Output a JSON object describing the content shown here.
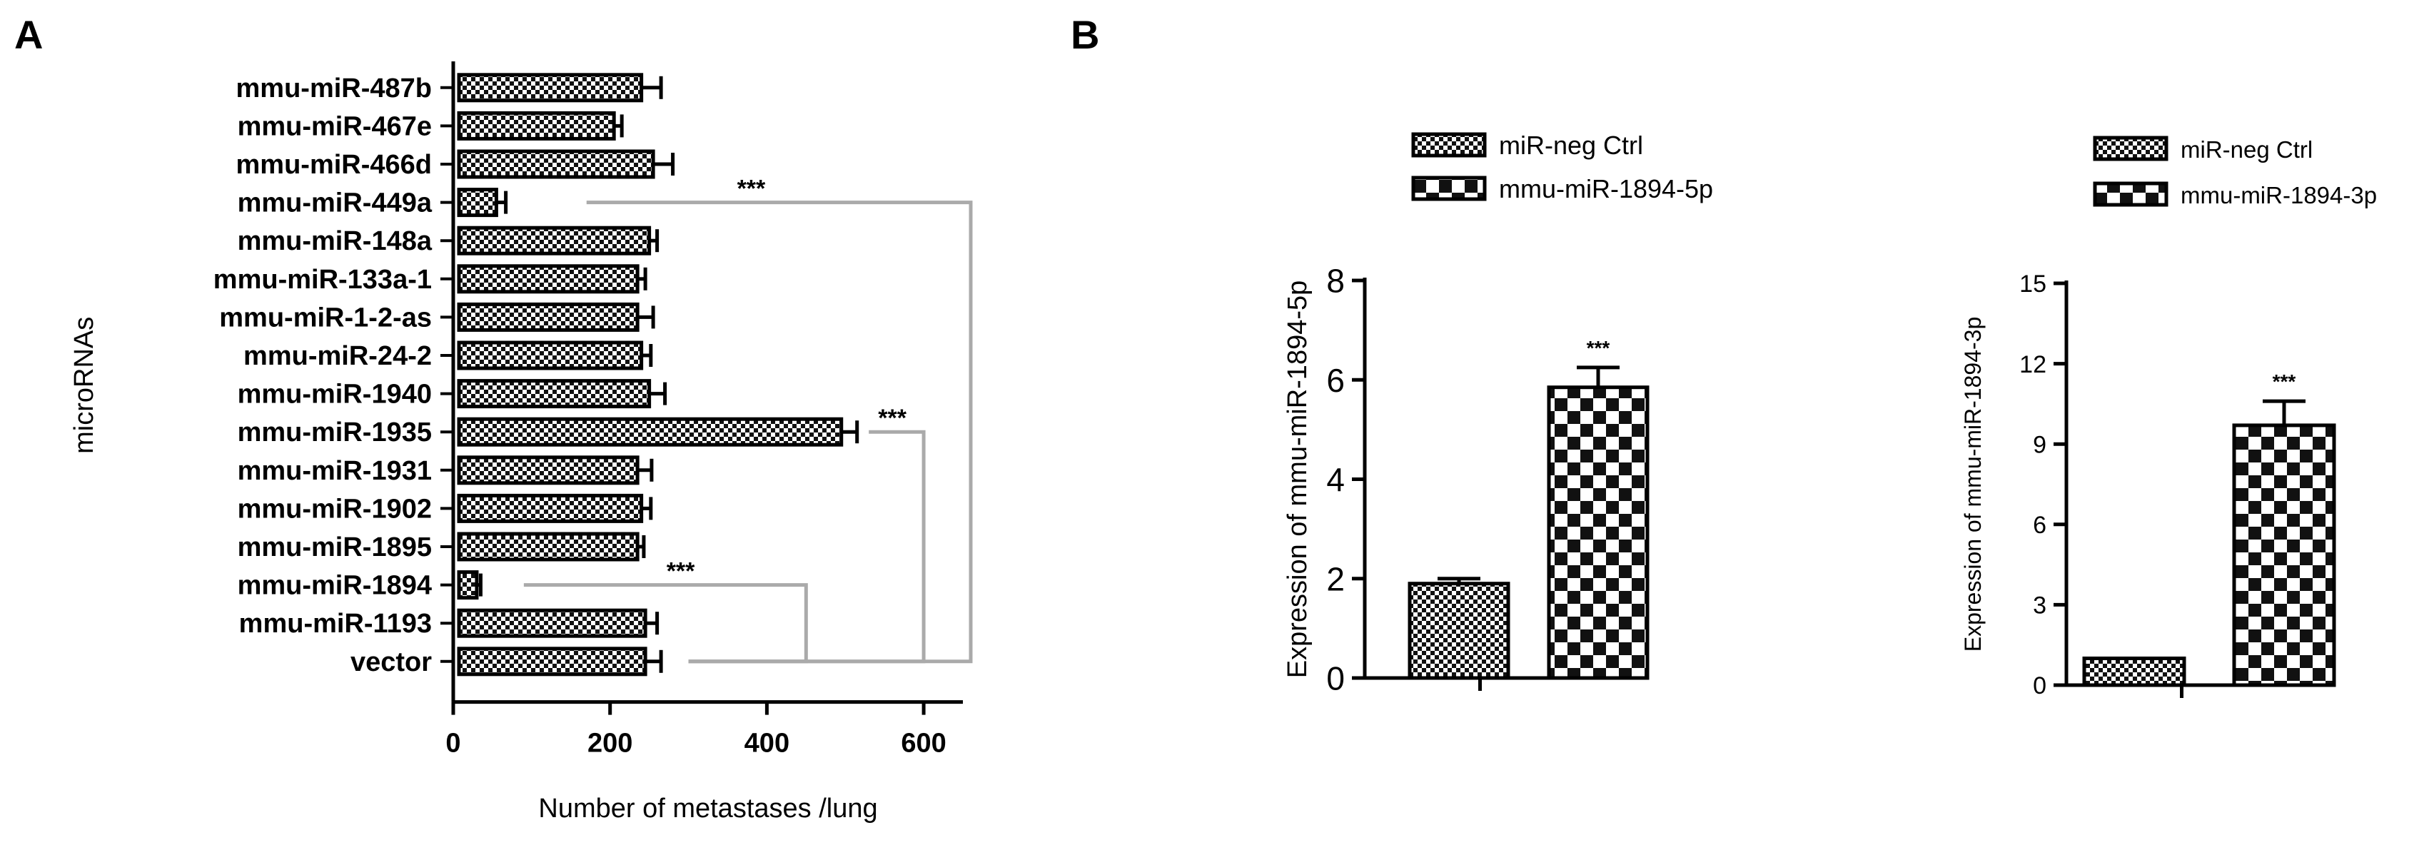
{
  "panels": {
    "a": "A",
    "b": "B"
  },
  "chart_data": [
    {
      "type": "bar",
      "orientation": "horizontal",
      "ylabel": "microRNAs",
      "xlabel": "Number of metastases /lung",
      "xlim": [
        0,
        650
      ],
      "xticks": [
        0,
        200,
        400,
        600
      ],
      "categories": [
        "mmu-miR-487b",
        "mmu-miR-467e",
        "mmu-miR-466d",
        "mmu-miR-449a",
        "mmu-miR-148a",
        "mmu-miR-133a-1",
        "mmu-miR-1-2-as",
        "mmu-miR-24-2",
        "mmu-miR-1940",
        "mmu-miR-1935",
        "mmu-miR-1931",
        "mmu-miR-1902",
        "mmu-miR-1895",
        "mmu-miR-1894",
        "mmu-miR-1193",
        "vector"
      ],
      "values": [
        240,
        205,
        255,
        55,
        250,
        235,
        235,
        240,
        250,
        495,
        235,
        240,
        235,
        30,
        245,
        245
      ],
      "errors": [
        25,
        10,
        25,
        12,
        10,
        10,
        20,
        12,
        20,
        20,
        18,
        12,
        8,
        5,
        15,
        20
      ],
      "significance": [
        {
          "from": "mmu-miR-449a",
          "to": "vector",
          "label": "***"
        },
        {
          "from": "mmu-miR-1935",
          "to": "vector",
          "label": "***"
        },
        {
          "from": "mmu-miR-1894",
          "to": "vector",
          "label": "***"
        }
      ]
    },
    {
      "type": "bar",
      "ylabel": "Expression of mmu-miR-1894-5p",
      "ylim": [
        0,
        8
      ],
      "yticks": [
        0,
        2,
        4,
        6,
        8
      ],
      "series": [
        {
          "name": "miR-neg Ctrl",
          "value": 1.9,
          "error": 0.1
        },
        {
          "name": "mmu-miR-1894-5p",
          "value": 5.85,
          "error": 0.4
        }
      ],
      "annotation": "***"
    },
    {
      "type": "bar",
      "ylabel": "Expression of mmu-miR-1894-3p",
      "ylim": [
        0,
        15
      ],
      "yticks": [
        0,
        3,
        6,
        9,
        12,
        15
      ],
      "series": [
        {
          "name": "miR-neg Ctrl",
          "value": 1.0,
          "error": 0.0
        },
        {
          "name": "mmu-miR-1894-3p",
          "value": 9.7,
          "error": 0.9
        }
      ],
      "annotation": "***"
    }
  ]
}
